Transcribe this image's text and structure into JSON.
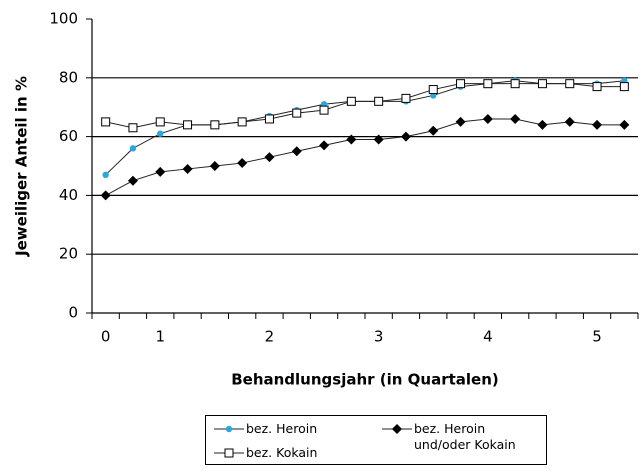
{
  "chart_data": {
    "type": "line",
    "y_label": "Jeweiliger Anteil in %",
    "x_label": "Behandlungsjahr (in Quartalen)",
    "categories": [
      "0",
      null,
      "1",
      null,
      null,
      null,
      "2",
      null,
      null,
      null,
      "3",
      null,
      null,
      null,
      "4",
      null,
      null,
      null,
      "5",
      null
    ],
    "series": [
      {
        "name": "bez. Heroin",
        "color": "#29a8e0",
        "marker": "circle",
        "values": [
          47,
          56,
          61,
          64,
          64,
          65,
          67,
          69,
          71,
          72,
          72,
          72,
          74,
          77,
          78,
          79,
          78,
          78,
          78,
          79
        ]
      },
      {
        "name": "bez. Kokain",
        "color": "#ffffff",
        "marker": "square",
        "values": [
          65,
          63,
          65,
          64,
          64,
          65,
          66,
          68,
          69,
          72,
          72,
          73,
          76,
          78,
          78,
          78,
          78,
          78,
          77,
          77
        ]
      },
      {
        "name": "bez. Heroin und/oder Kokain",
        "color": "#000000",
        "marker": "diamond",
        "values": [
          40,
          45,
          48,
          49,
          50,
          51,
          53,
          55,
          57,
          59,
          59,
          60,
          62,
          65,
          66,
          66,
          64,
          65,
          64,
          64
        ]
      }
    ],
    "ylim": [
      0,
      100
    ],
    "yticks": [
      0,
      20,
      40,
      60,
      80,
      100
    ],
    "grid": true,
    "legend": "bottom"
  }
}
